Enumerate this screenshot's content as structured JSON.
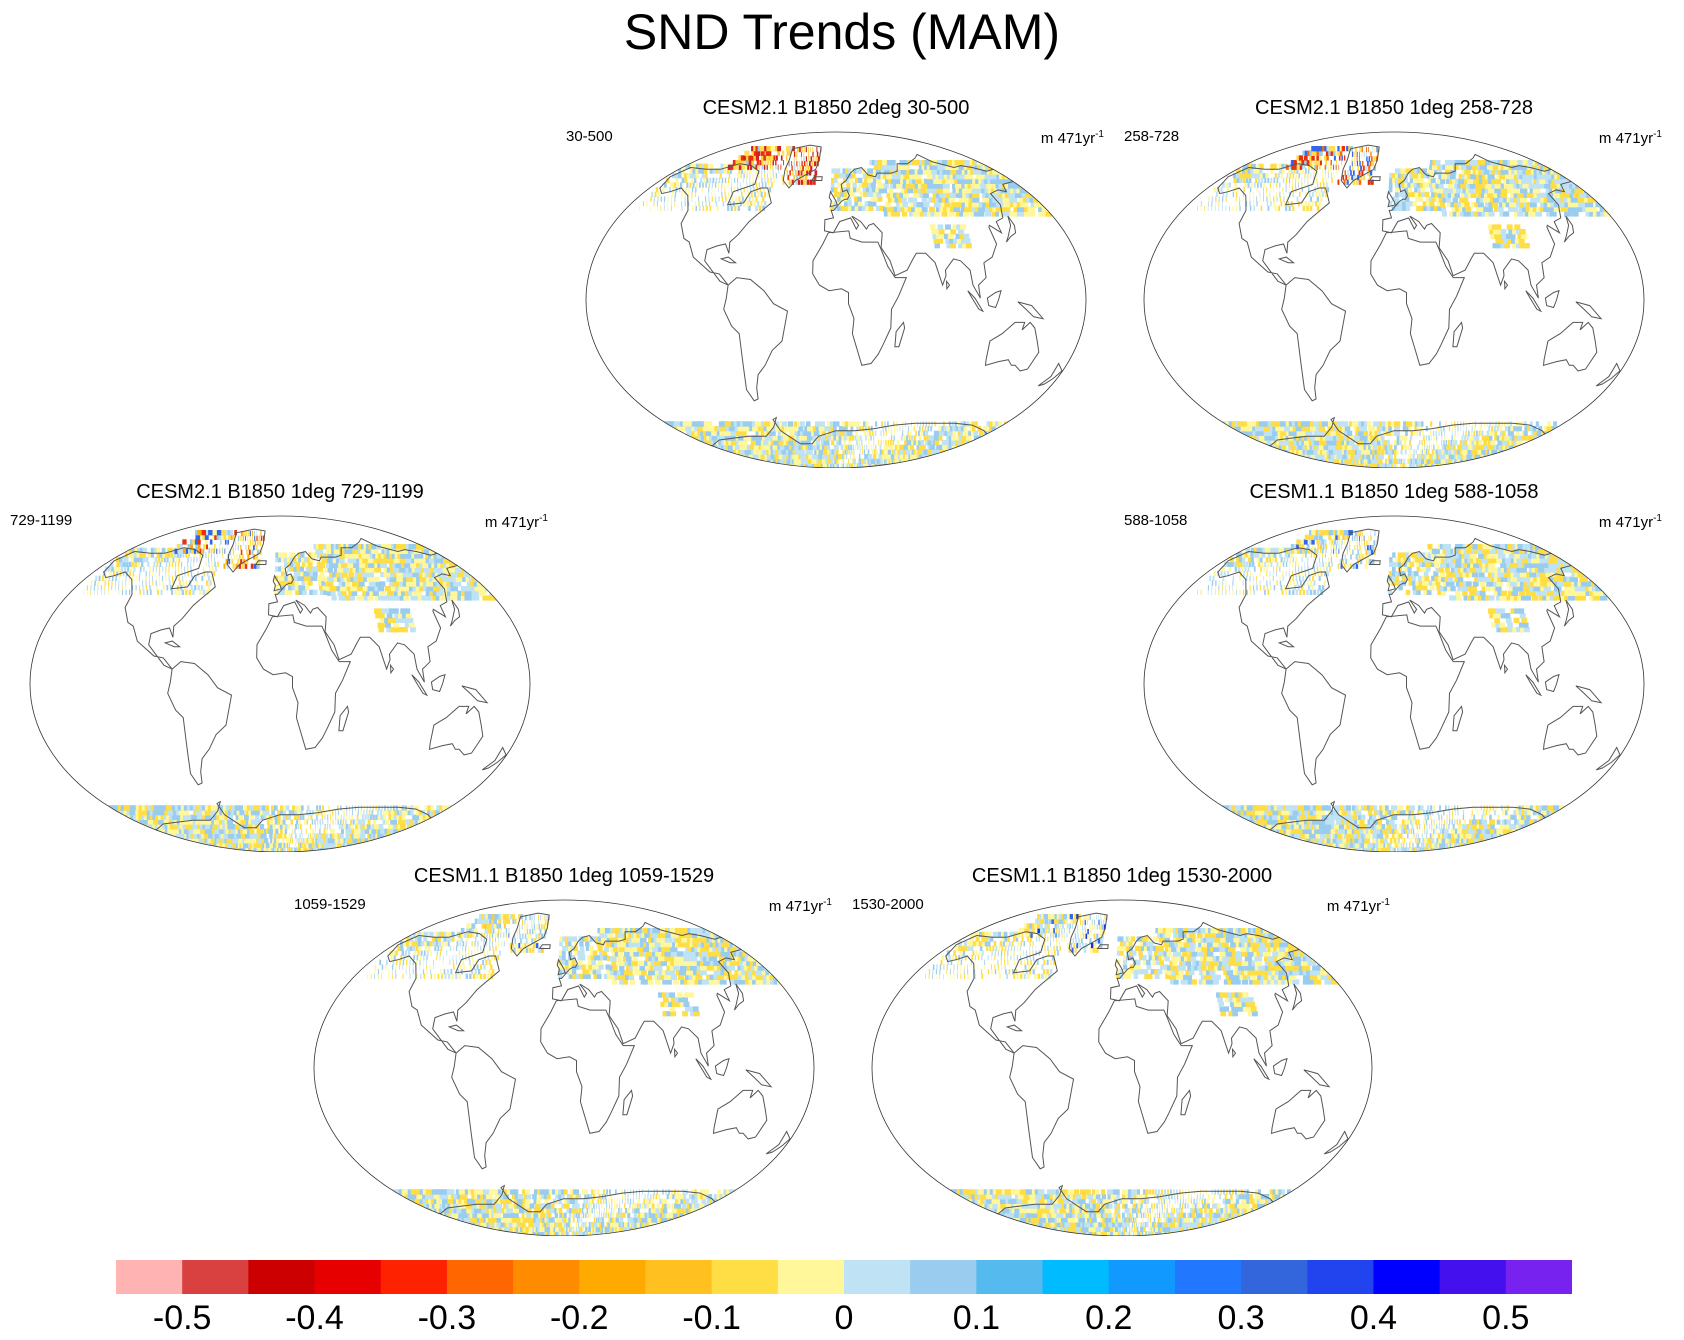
{
  "title": "SND Trends (MAM)",
  "panels": [
    {
      "title": "CESM2.1 B1850 2deg 30-500",
      "left": "30-500",
      "right": "m 471yr",
      "right_exp": "-1",
      "arctic": [
        "#d42020",
        "#e83010",
        "#ffcc33",
        "#ffdd55"
      ],
      "arctic_intensity": 0.9
    },
    {
      "title": "CESM2.1 B1850 1deg 258-728",
      "left": "258-728",
      "right": "m 471yr",
      "right_exp": "-1",
      "arctic": [
        "#e83010",
        "#ff6a00",
        "#ffdd55",
        "#3366ee"
      ],
      "arctic_intensity": 0.7
    },
    {
      "title": "CESM2.1 B1850 1deg 729-1199",
      "left": "729-1199",
      "right": "m 471yr",
      "right_exp": "-1",
      "arctic": [
        "#e83010",
        "#ffaa00",
        "#ffdd55",
        "#3366ee"
      ],
      "arctic_intensity": 0.6
    },
    {
      "title": "CESM1.1 B1850 1deg 588-1058",
      "left": "588-1058",
      "right": "m 471yr",
      "right_exp": "-1",
      "arctic": [
        "#ffdd55",
        "#ffcc33",
        "#3366ee",
        "#99ccee"
      ],
      "arctic_intensity": 0.3
    },
    {
      "title": "CESM1.1 B1850 1deg 1059-1529",
      "left": "1059-1529",
      "right": "m 471yr",
      "right_exp": "-1",
      "arctic": [
        "#ffdd55",
        "#3366ee",
        "#99ccee",
        "#ffcc33"
      ],
      "arctic_intensity": 0.2
    },
    {
      "title": "CESM1.1 B1850 1deg 1530-2000",
      "left": "1530-2000",
      "right": "m 471yr",
      "right_exp": "-1",
      "arctic": [
        "#ffdd55",
        "#3366ee",
        "#1133dd",
        "#99ccee"
      ],
      "arctic_intensity": 0.25
    }
  ],
  "colorbar": {
    "colors": [
      "#ffb3b3",
      "#d94040",
      "#cc0000",
      "#e60000",
      "#ff2200",
      "#ff6600",
      "#ff8c00",
      "#ffaa00",
      "#ffc020",
      "#ffdd44",
      "#fff799",
      "#bfe3f5",
      "#99ccee",
      "#55bbee",
      "#00bbff",
      "#1199ff",
      "#2277ff",
      "#3366dd",
      "#2244ee",
      "#0000ff",
      "#4411ee",
      "#7722ee"
    ],
    "tick_labels": [
      "-0.5",
      "-0.4",
      "-0.3",
      "-0.2",
      "-0.1",
      "0",
      "0.1",
      "0.2",
      "0.3",
      "0.4",
      "0.5"
    ]
  },
  "chart_data": {
    "type": "heatmap",
    "title": "SND Trends (MAM)",
    "colorbar_range": [
      -0.55,
      0.55
    ],
    "colorbar_step": 0.05,
    "panel_titles": [
      "CESM2.1 B1850 2deg 30-500",
      "CESM2.1 B1850 1deg 258-728",
      "CESM2.1 B1850 1deg 729-1199",
      "CESM1.1 B1850 1deg 588-1058",
      "CESM1.1 B1850 1deg 1059-1529",
      "CESM1.1 B1850 1deg 1530-2000"
    ],
    "units": "m 471yr-1"
  }
}
